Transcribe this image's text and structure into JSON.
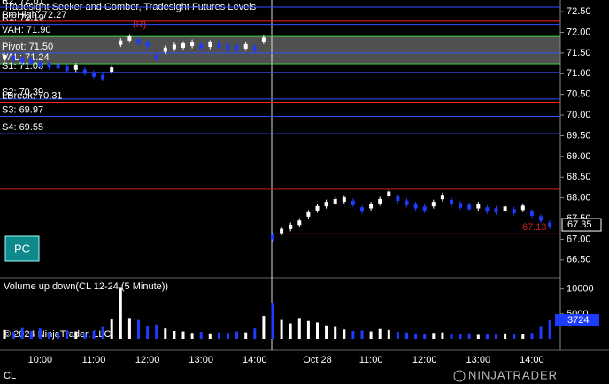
{
  "chart_data": {
    "type": "candlestick",
    "title": "Tradesight Seeker and Comber, Tradesight Futures Levels",
    "symbol": "CL",
    "copyright": "© 2024 NinjaTrader, LLC",
    "logo": "NINJATRADER",
    "button": "PC",
    "annotation": "(R)",
    "up_color": "#ffffff",
    "down_color": "#1e3cff",
    "categories": [
      null,
      null,
      null,
      null,
      "10:00",
      null,
      null,
      null,
      null,
      null,
      "11:00",
      null,
      null,
      null,
      null,
      null,
      "12:00",
      null,
      null,
      null,
      null,
      null,
      "13:00",
      null,
      null,
      null,
      null,
      null,
      "14:00",
      null,
      null,
      null,
      null,
      null,
      null,
      "Oct 28",
      null,
      null,
      null,
      null,
      null,
      "11:00",
      null,
      null,
      null,
      null,
      null,
      "12:00",
      null,
      null,
      null,
      null,
      null,
      "13:00",
      null,
      null,
      null,
      null,
      null,
      "14:00",
      null,
      null
    ],
    "values": [
      71.4,
      71.38,
      71.32,
      71.3,
      71.22,
      71.2,
      71.18,
      71.12,
      71.15,
      71.05,
      70.98,
      70.92,
      71.1,
      71.75,
      71.85,
      71.78,
      71.7,
      71.4,
      71.58,
      71.65,
      71.68,
      71.72,
      71.66,
      71.7,
      71.68,
      71.64,
      71.62,
      71.66,
      71.6,
      71.82,
      67.05,
      67.2,
      67.3,
      67.4,
      67.6,
      67.75,
      67.85,
      67.92,
      67.96,
      67.88,
      67.72,
      67.8,
      67.92,
      68.1,
      67.98,
      67.88,
      67.8,
      67.74,
      67.85,
      68.02,
      67.9,
      67.82,
      67.78,
      67.8,
      67.72,
      67.7,
      67.74,
      67.68,
      67.76,
      67.62,
      67.5,
      67.35
    ],
    "ylim": [
      66.09,
      72.78
    ],
    "yticks": [
      {
        "value": 72.5,
        "label": "72.50"
      },
      {
        "value": 72.0,
        "label": "72.00"
      },
      {
        "value": 71.5,
        "label": "71.50"
      },
      {
        "value": 71.0,
        "label": "71.00"
      },
      {
        "value": 70.5,
        "label": "70.50"
      },
      {
        "value": 70.0,
        "label": "70.00"
      },
      {
        "value": 69.5,
        "label": "69.50"
      },
      {
        "value": 69.0,
        "label": "69.00"
      },
      {
        "value": 68.5,
        "label": "68.50"
      },
      {
        "value": 68.0,
        "label": "68.00"
      },
      {
        "value": 67.5,
        "label": "67.50"
      },
      {
        "value": 67.0,
        "label": "67.00"
      },
      {
        "value": 66.5,
        "label": "66.50"
      }
    ],
    "last_price": {
      "value": 67.35,
      "label": "67.35"
    },
    "levels": [
      {
        "label": "R2: 72.61",
        "value": 72.61,
        "color": "#3050ff"
      },
      {
        "label": "PreHigh: 72.27",
        "value": 72.27,
        "color": "#ff2020"
      },
      {
        "label": "R1: 72.19",
        "value": 72.19,
        "color": "#3050ff"
      },
      {
        "label": "VAH: 71.90",
        "value": 71.9,
        "color": "#40d040"
      },
      {
        "label": "Pivot: 71.50",
        "value": 71.5,
        "color": "#3050ff"
      },
      {
        "label": "VAL: 71.24",
        "value": 71.24,
        "color": "#40d040"
      },
      {
        "label": "S1: 71.03",
        "value": 71.03,
        "color": "#3050ff"
      },
      {
        "label": "S2: 70.39",
        "value": 70.39,
        "color": "#3050ff"
      },
      {
        "label": "LBreak: 70.31",
        "value": 70.31,
        "color": "#ff2020"
      },
      {
        "label": "S3: 69.97",
        "value": 69.97,
        "color": "#3050ff"
      },
      {
        "label": "S4: 69.55",
        "value": 69.55,
        "color": "#3050ff"
      },
      {
        "value": 68.21,
        "color": "#d02020"
      },
      {
        "label": "67.13",
        "value": 67.13,
        "color": "#d02020",
        "label_side": "right"
      }
    ],
    "volume": {
      "title": "Volume up down(CL 12-24 (5 Minute))",
      "ylim": [
        0,
        11900
      ],
      "yticks": [
        5000,
        10000
      ],
      "last": 3724,
      "values": [
        1800,
        1500,
        2200,
        1600,
        2100,
        1400,
        1300,
        1700,
        1500,
        1200,
        1600,
        2400,
        3900,
        10400,
        4200,
        3800,
        2600,
        2900,
        2100,
        1600,
        1500,
        1200,
        1400,
        1100,
        1300,
        1200,
        1500,
        1300,
        2100,
        4600,
        7300,
        3800,
        3100,
        4200,
        3600,
        3300,
        2700,
        2400,
        1900,
        1600,
        1700,
        1500,
        2000,
        1800,
        1400,
        1300,
        1100,
        1000,
        1200,
        1300,
        1000,
        900,
        1100,
        800,
        1000,
        900,
        1100,
        900,
        1000,
        1200,
        2400,
        3724
      ]
    }
  }
}
